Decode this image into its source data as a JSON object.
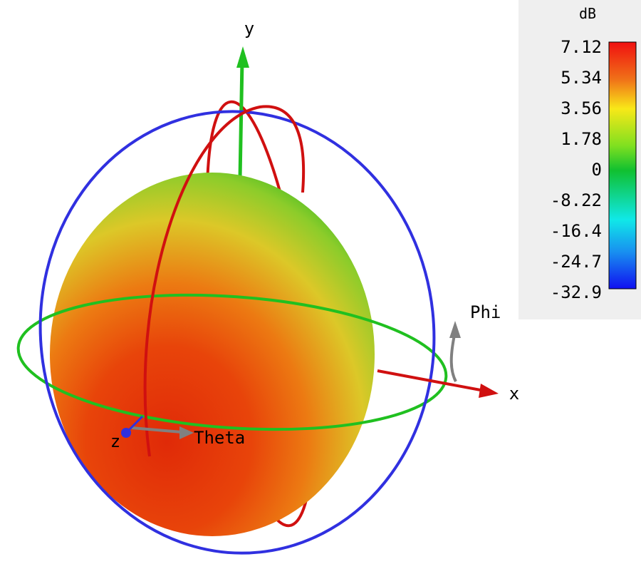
{
  "colorbar": {
    "unit": "dB",
    "labels": [
      "7.12",
      "5.34",
      "3.56",
      "1.78",
      "0",
      "-8.22",
      "-16.4",
      "-24.7",
      "-32.9"
    ]
  },
  "axes": {
    "x": "x",
    "y": "y",
    "z": "z"
  },
  "angles": {
    "theta": "Theta",
    "phi": "Phi"
  }
}
